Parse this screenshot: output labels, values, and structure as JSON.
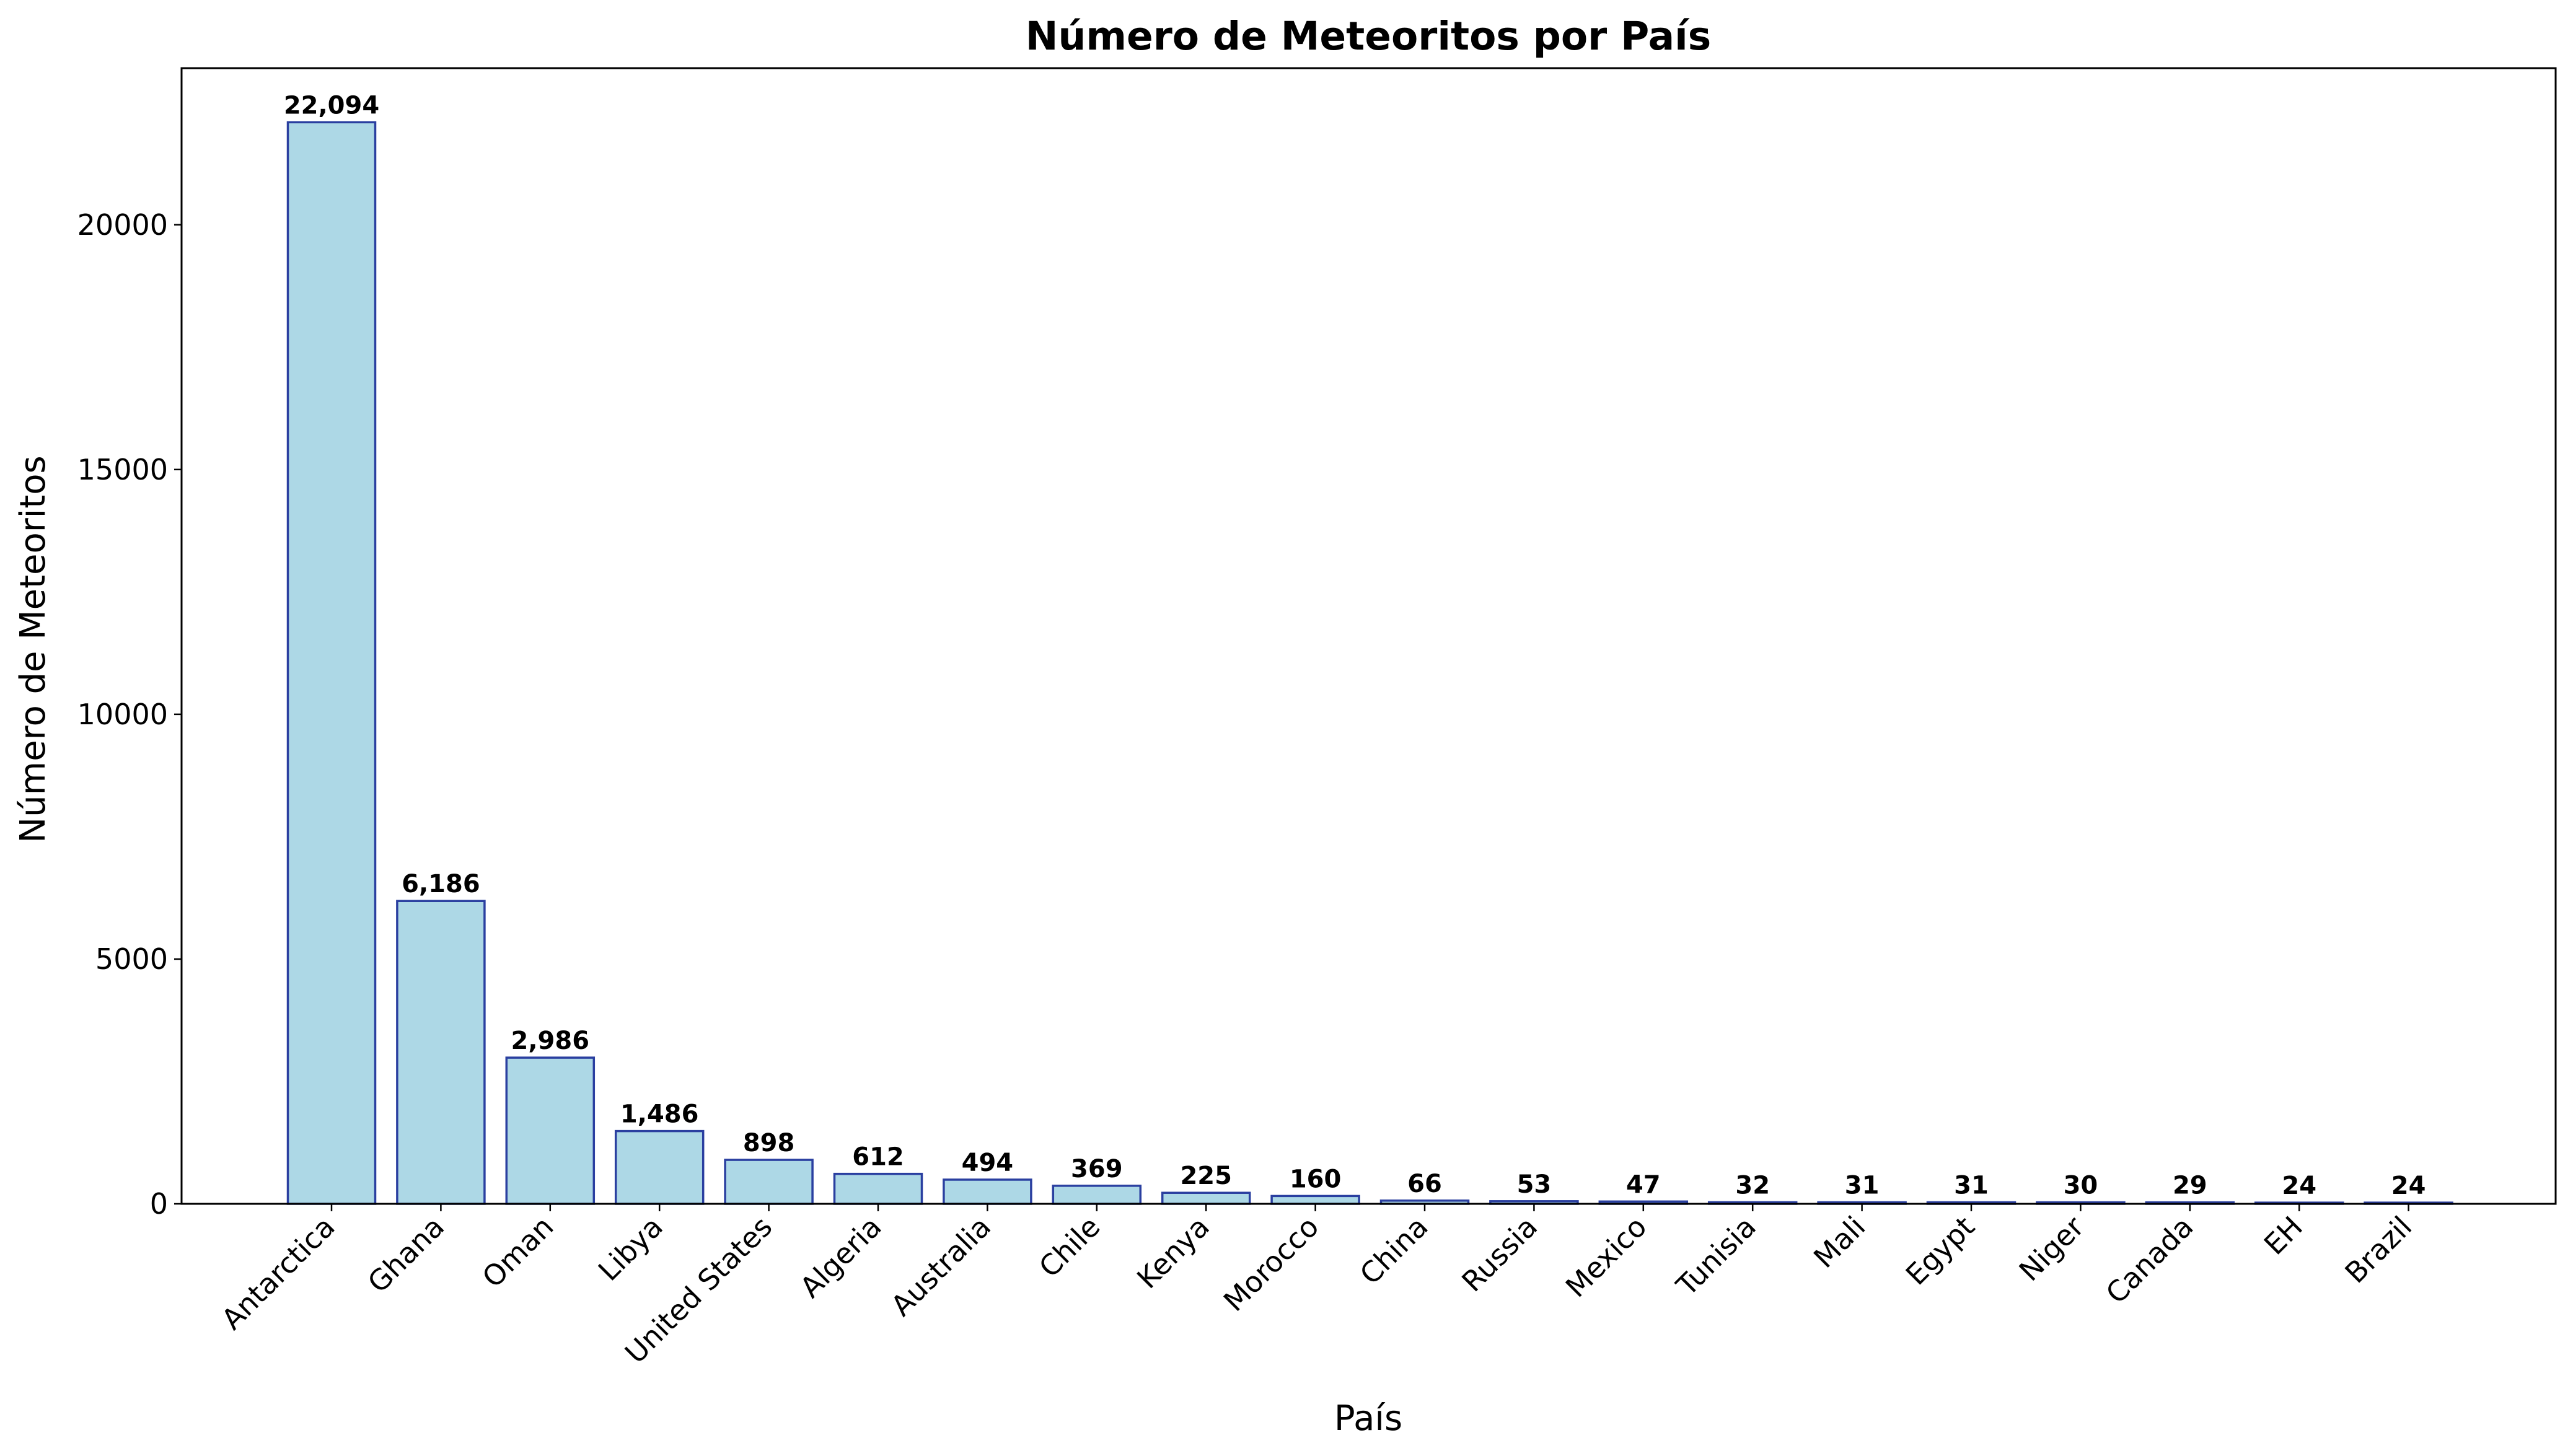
{
  "colors": {
    "bar_fill": "#add8e6",
    "bar_edge": "#2a3fa0",
    "axis": "#000000",
    "background": "#ffffff"
  },
  "chart_data": {
    "type": "bar",
    "title": "Número de Meteoritos por País",
    "xlabel": "País",
    "ylabel": "Número de Meteoritos",
    "categories": [
      "Antarctica",
      "Ghana",
      "Oman",
      "Libya",
      "United States",
      "Algeria",
      "Australia",
      "Chile",
      "Kenya",
      "Morocco",
      "China",
      "Russia",
      "Mexico",
      "Tunisia",
      "Mali",
      "Egypt",
      "Niger",
      "Canada",
      "EH",
      "Brazil"
    ],
    "values": [
      22094,
      6186,
      2986,
      1486,
      898,
      612,
      494,
      369,
      225,
      160,
      66,
      53,
      47,
      32,
      31,
      31,
      30,
      29,
      24,
      24
    ],
    "value_labels": [
      "22,094",
      "6,186",
      "2,986",
      "1,486",
      "898",
      "612",
      "494",
      "369",
      "225",
      "160",
      "66",
      "53",
      "47",
      "32",
      "31",
      "31",
      "30",
      "29",
      "24",
      "24"
    ],
    "yticks": [
      0,
      5000,
      10000,
      15000,
      20000
    ],
    "ytick_labels": [
      "0",
      "5000",
      "10000",
      "15000",
      "20000"
    ],
    "ylim": [
      0,
      23199
    ],
    "grid": false,
    "legend": "none"
  }
}
